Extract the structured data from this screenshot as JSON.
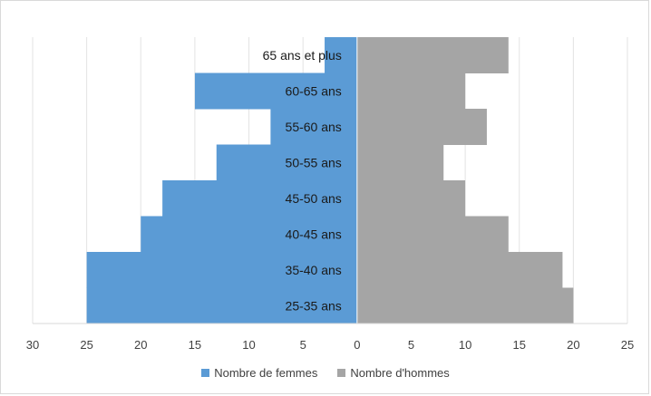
{
  "chart_data": {
    "type": "bar",
    "orientation": "horizontal",
    "layout": "population-pyramid",
    "categories": [
      "65 ans et plus",
      "60-65 ans",
      "55-60 ans",
      "50-55 ans",
      "45-50 ans",
      "40-45 ans",
      "35-40 ans",
      "25-35 ans"
    ],
    "series": [
      {
        "name": "Nombre de femmes",
        "color": "#5b9bd5",
        "side": "left",
        "values": [
          3,
          15,
          8,
          13,
          18,
          20,
          25,
          25
        ]
      },
      {
        "name": "Nombre d'hommes",
        "color": "#a5a5a5",
        "side": "right",
        "values": [
          14,
          10,
          12,
          8,
          10,
          14,
          19,
          20
        ]
      }
    ],
    "xlim": [
      -30,
      25
    ],
    "x_ticks": [
      -30,
      -25,
      -20,
      -15,
      -10,
      -5,
      0,
      5,
      10,
      15,
      20,
      25
    ],
    "x_tick_labels": [
      "30",
      "25",
      "20",
      "15",
      "10",
      "5",
      "0",
      "5",
      "10",
      "15",
      "20",
      "25"
    ],
    "grid": true,
    "legend_position": "bottom",
    "title": "",
    "xlabel": "",
    "ylabel": ""
  }
}
